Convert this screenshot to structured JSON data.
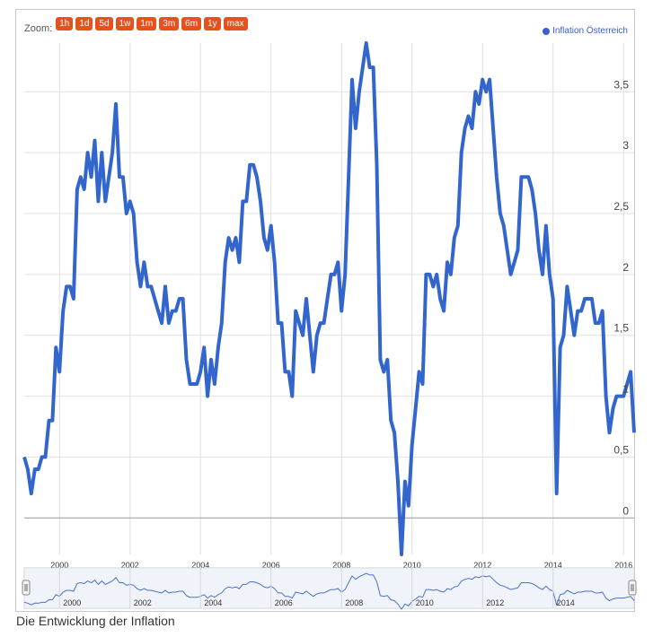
{
  "zoom": {
    "label": "Zoom:",
    "buttons": [
      "1h",
      "1d",
      "5d",
      "1w",
      "1m",
      "3m",
      "6m",
      "1y",
      "max"
    ]
  },
  "legend": {
    "label": "Inflation Österreich",
    "color": "#3a5fcd"
  },
  "caption": "Die Entwicklung der Inflation",
  "colors": {
    "series": "#3366cc",
    "zoom_button": "#e8501e",
    "navigator_fill": "#e6ebf7",
    "grid": "#e0e0e0"
  },
  "chart_data": {
    "type": "line",
    "title": "",
    "xlabel": "",
    "ylabel": "",
    "x_range": [
      1999.0,
      2016.3
    ],
    "ylim": [
      -0.3,
      3.9
    ],
    "y_ticks": [
      0,
      0.5,
      1,
      1.5,
      2,
      2.5,
      3,
      3.5
    ],
    "y_tick_labels": [
      "0",
      "0,5",
      "1",
      "1,5",
      "2",
      "2,5",
      "3",
      "3,5"
    ],
    "x_ticks": [
      2000,
      2002,
      2004,
      2006,
      2008,
      2010,
      2012,
      2014,
      2016
    ],
    "x_tick_labels": [
      "2000",
      "2002",
      "2004",
      "2006",
      "2008",
      "2010",
      "2012",
      "2014",
      "2016"
    ],
    "navigator_x_ticks": [
      2000,
      2002,
      2004,
      2006,
      2008,
      2010,
      2012,
      2014
    ],
    "navigator_x_tick_labels": [
      "2000",
      "2002",
      "2004",
      "2006",
      "2008",
      "2010",
      "2012",
      "2014"
    ],
    "grid": true,
    "legend_position": "top-right",
    "series": [
      {
        "name": "Inflation Österreich",
        "x": [
          1999.0,
          1999.1,
          1999.2,
          1999.3,
          1999.4,
          1999.5,
          1999.6,
          1999.7,
          1999.8,
          1999.9,
          2000.0,
          2000.1,
          2000.2,
          2000.3,
          2000.4,
          2000.5,
          2000.6,
          2000.7,
          2000.8,
          2000.9,
          2001.0,
          2001.1,
          2001.2,
          2001.3,
          2001.4,
          2001.5,
          2001.6,
          2001.7,
          2001.8,
          2001.9,
          2002.0,
          2002.1,
          2002.2,
          2002.3,
          2002.4,
          2002.5,
          2002.6,
          2002.7,
          2002.8,
          2002.9,
          2003.0,
          2003.1,
          2003.2,
          2003.3,
          2003.4,
          2003.5,
          2003.6,
          2003.7,
          2003.8,
          2003.9,
          2004.0,
          2004.1,
          2004.2,
          2004.3,
          2004.4,
          2004.5,
          2004.6,
          2004.7,
          2004.8,
          2004.9,
          2005.0,
          2005.1,
          2005.2,
          2005.3,
          2005.4,
          2005.5,
          2005.6,
          2005.7,
          2005.8,
          2005.9,
          2006.0,
          2006.1,
          2006.2,
          2006.3,
          2006.4,
          2006.5,
          2006.6,
          2006.7,
          2006.8,
          2006.9,
          2007.0,
          2007.1,
          2007.2,
          2007.3,
          2007.4,
          2007.5,
          2007.6,
          2007.7,
          2007.8,
          2007.9,
          2008.0,
          2008.1,
          2008.2,
          2008.3,
          2008.4,
          2008.5,
          2008.6,
          2008.7,
          2008.8,
          2008.9,
          2009.0,
          2009.1,
          2009.2,
          2009.3,
          2009.4,
          2009.5,
          2009.6,
          2009.7,
          2009.8,
          2009.9,
          2010.0,
          2010.1,
          2010.2,
          2010.3,
          2010.4,
          2010.5,
          2010.6,
          2010.7,
          2010.8,
          2010.9,
          2011.0,
          2011.1,
          2011.2,
          2011.3,
          2011.4,
          2011.5,
          2011.6,
          2011.7,
          2011.8,
          2011.9,
          2012.0,
          2012.1,
          2012.2,
          2012.3,
          2012.4,
          2012.5,
          2012.6,
          2012.7,
          2012.8,
          2012.9,
          2013.0,
          2013.1,
          2013.2,
          2013.3,
          2013.4,
          2013.5,
          2013.6,
          2013.7,
          2013.8,
          2013.9,
          2014.0,
          2014.1,
          2014.2,
          2014.3,
          2014.4,
          2014.5,
          2014.6,
          2014.7,
          2014.8,
          2014.9,
          2015.0,
          2015.1,
          2015.2,
          2015.3,
          2015.4,
          2015.5,
          2015.6,
          2015.7,
          2015.8,
          2015.9,
          2016.0,
          2016.1,
          2016.2,
          2016.3
        ],
        "y": [
          0.5,
          0.4,
          0.2,
          0.4,
          0.4,
          0.5,
          0.5,
          0.8,
          0.8,
          1.4,
          1.2,
          1.7,
          1.9,
          1.9,
          1.8,
          2.7,
          2.8,
          2.7,
          3.0,
          2.8,
          3.1,
          2.6,
          3.0,
          2.6,
          2.8,
          3.0,
          3.4,
          2.8,
          2.8,
          2.5,
          2.6,
          2.5,
          2.1,
          1.9,
          2.1,
          1.9,
          1.9,
          1.8,
          1.7,
          1.6,
          1.9,
          1.6,
          1.7,
          1.7,
          1.8,
          1.8,
          1.3,
          1.1,
          1.1,
          1.1,
          1.2,
          1.4,
          1.0,
          1.3,
          1.1,
          1.4,
          1.6,
          2.1,
          2.3,
          2.2,
          2.3,
          2.1,
          2.6,
          2.6,
          2.9,
          2.9,
          2.8,
          2.6,
          2.3,
          2.2,
          2.4,
          2.1,
          1.6,
          1.6,
          1.2,
          1.2,
          1.0,
          1.7,
          1.6,
          1.5,
          1.8,
          1.5,
          1.2,
          1.5,
          1.6,
          1.6,
          1.8,
          2.0,
          2.0,
          2.1,
          1.7,
          2.0,
          2.8,
          3.6,
          3.2,
          3.5,
          3.7,
          3.9,
          3.7,
          3.7,
          2.9,
          1.3,
          1.2,
          1.3,
          0.8,
          0.7,
          0.3,
          -0.3,
          0.3,
          0.1,
          0.6,
          0.9,
          1.2,
          1.1,
          2.0,
          2.0,
          1.9,
          2.0,
          1.8,
          1.7,
          2.1,
          2.0,
          2.3,
          2.4,
          3.0,
          3.2,
          3.3,
          3.2,
          3.5,
          3.4,
          3.6,
          3.5,
          3.6,
          3.2,
          2.8,
          2.5,
          2.4,
          2.2,
          2.0,
          2.1,
          2.2,
          2.8,
          2.8,
          2.8,
          2.7,
          2.5,
          2.2,
          2.0,
          2.4,
          2.0,
          1.8,
          0.2,
          1.4,
          1.5,
          1.9,
          1.7,
          1.5,
          1.7,
          1.7,
          1.8,
          1.8,
          1.8,
          1.6,
          1.6,
          1.7,
          1.0,
          0.7,
          0.9,
          1.0,
          1.0,
          1.0,
          1.1,
          1.2,
          0.7
        ]
      }
    ]
  }
}
